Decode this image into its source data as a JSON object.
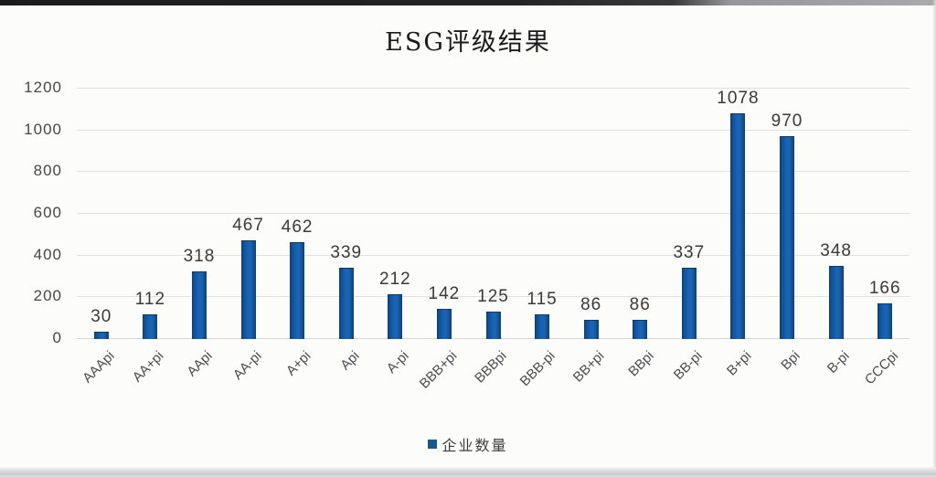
{
  "chart_data": {
    "type": "bar",
    "title": "ESG评级结果",
    "categories": [
      "AAApi",
      "AA+pi",
      "AApi",
      "AA-pi",
      "A+pi",
      "Api",
      "A-pi",
      "BBB+pi",
      "BBBpi",
      "BBB-pi",
      "BB+pi",
      "BBpi",
      "BB-pi",
      "B+pi",
      "Bpi",
      "B-pi",
      "CCCpi"
    ],
    "series": [
      {
        "name": "企业数量",
        "values": [
          30,
          112,
          318,
          467,
          462,
          339,
          212,
          142,
          125,
          115,
          86,
          86,
          337,
          1078,
          970,
          348,
          166
        ]
      }
    ],
    "xlabel": "",
    "ylabel": "",
    "ylim": [
      0,
      1200
    ],
    "ytick_step": 200,
    "yticks": [
      "0",
      "200",
      "400",
      "600",
      "800",
      "1000",
      "1200"
    ],
    "grid": true,
    "legend_position": "bottom",
    "bar_color": "#1660ae",
    "value_labels_shown": true
  }
}
